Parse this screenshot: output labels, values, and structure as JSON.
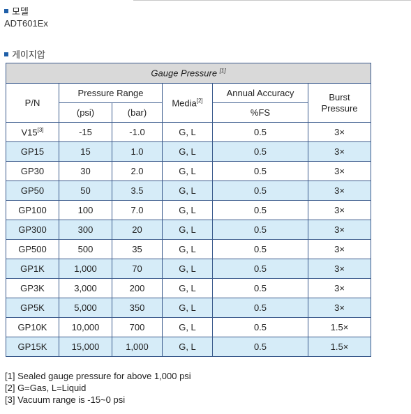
{
  "model_section": {
    "title": "모델",
    "value": "ADT601Ex"
  },
  "gauge_section": {
    "title": "게이지압"
  },
  "table": {
    "caption": "Gauge Pressure",
    "caption_note": "[1]",
    "headers": {
      "pn": "P/N",
      "pressure_range": "Pressure Range",
      "psi": "(psi)",
      "bar": "(bar)",
      "media": "Media",
      "media_note": "[2]",
      "accuracy": "Annual Accuracy",
      "accuracy_unit": "%FS",
      "burst_line1": "Burst",
      "burst_line2": "Pressure"
    },
    "rows": [
      {
        "pn": "V15",
        "pn_note": "[3]",
        "psi": "-15",
        "bar": "-1.0",
        "media": "G, L",
        "acc": "0.5",
        "burst": "3×"
      },
      {
        "pn": "GP15",
        "pn_note": "",
        "psi": "15",
        "bar": "1.0",
        "media": "G, L",
        "acc": "0.5",
        "burst": "3×"
      },
      {
        "pn": "GP30",
        "pn_note": "",
        "psi": "30",
        "bar": "2.0",
        "media": "G, L",
        "acc": "0.5",
        "burst": "3×"
      },
      {
        "pn": "GP50",
        "pn_note": "",
        "psi": "50",
        "bar": "3.5",
        "media": "G, L",
        "acc": "0.5",
        "burst": "3×"
      },
      {
        "pn": "GP100",
        "pn_note": "",
        "psi": "100",
        "bar": "7.0",
        "media": "G, L",
        "acc": "0.5",
        "burst": "3×"
      },
      {
        "pn": "GP300",
        "pn_note": "",
        "psi": "300",
        "bar": "20",
        "media": "G, L",
        "acc": "0.5",
        "burst": "3×"
      },
      {
        "pn": "GP500",
        "pn_note": "",
        "psi": "500",
        "bar": "35",
        "media": "G, L",
        "acc": "0.5",
        "burst": "3×"
      },
      {
        "pn": "GP1K",
        "pn_note": "",
        "psi": "1,000",
        "bar": "70",
        "media": "G, L",
        "acc": "0.5",
        "burst": "3×"
      },
      {
        "pn": "GP3K",
        "pn_note": "",
        "psi": "3,000",
        "bar": "200",
        "media": "G, L",
        "acc": "0.5",
        "burst": "3×"
      },
      {
        "pn": "GP5K",
        "pn_note": "",
        "psi": "5,000",
        "bar": "350",
        "media": "G, L",
        "acc": "0.5",
        "burst": "3×"
      },
      {
        "pn": "GP10K",
        "pn_note": "",
        "psi": "10,000",
        "bar": "700",
        "media": "G, L",
        "acc": "0.5",
        "burst": "1.5×"
      },
      {
        "pn": "GP15K",
        "pn_note": "",
        "psi": "15,000",
        "bar": "1,000",
        "media": "G, L",
        "acc": "0.5",
        "burst": "1.5×"
      }
    ]
  },
  "notes": [
    "[1] Sealed gauge pressure for above 1,000 psi",
    "[2] G=Gas, L=Liquid",
    "[3] Vacuum range is -15~0 psi"
  ],
  "colors": {
    "bullet": "#1f5fa8",
    "row_alt": "#d6ecf8",
    "caption_bg": "#d9d9d9",
    "border": "#3a5a8c"
  }
}
